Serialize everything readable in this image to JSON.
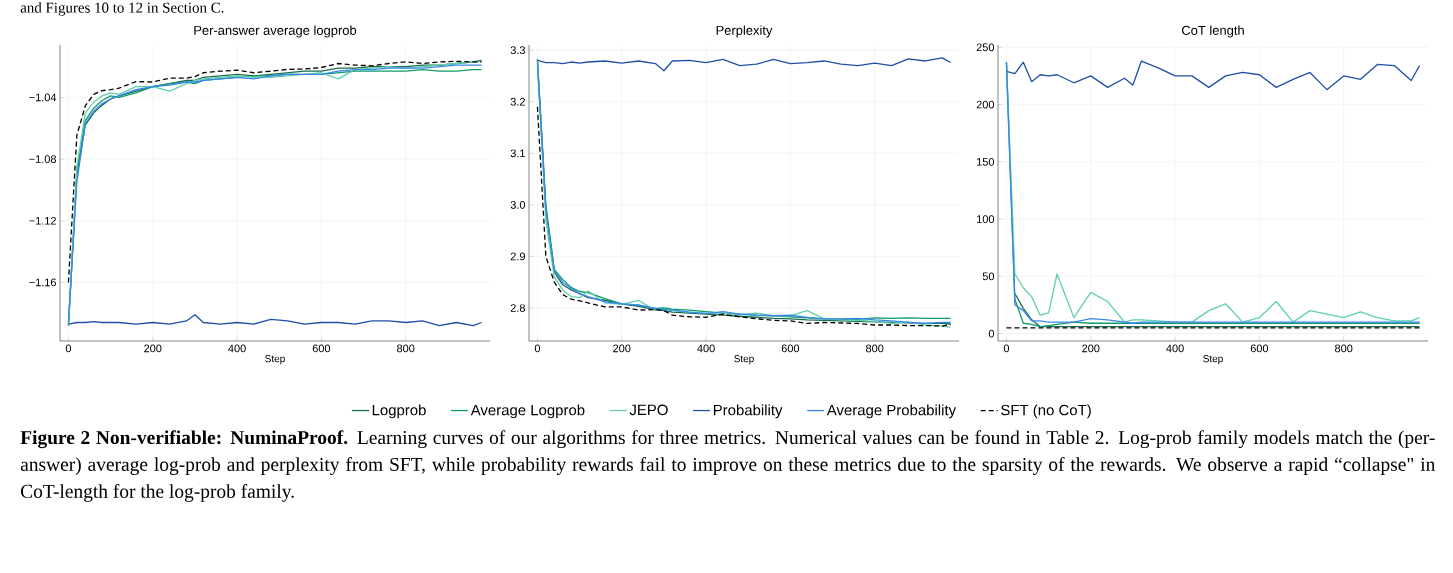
{
  "chart_data": [
    {
      "type": "line",
      "title": "Per-answer average logprob",
      "xlabel": "Step",
      "grid": true,
      "annotations": [
        "and Figures 10 to 12 in Section C.",
        "**Figure 2 Non-verifiable: NuminaProof.** Learning curves of our algorithms for three metrics. Numerical values can be found in Table 2. Log-prob family models match the (per-answer) average log-prob and perplexity from SFT, while probability rewards fail to improve on these metrics due to the sparsity of the rewards. We observe a rapid “collapse\" in CoT-length for the log-prob family."
      ],
      "xlim": [
        -20,
        1000
      ],
      "xticks": [
        0,
        200,
        400,
        600,
        800
      ],
      "ylim": [
        -1.198,
        -1.006
      ],
      "yticks": [
        {
          "value": -1.16,
          "label": "−1.16"
        },
        {
          "value": -1.12,
          "label": "−1.12"
        },
        {
          "value": -1.08,
          "label": "−1.08"
        },
        {
          "value": -1.04,
          "label": "−1.04"
        }
      ],
      "x": [
        0,
        20,
        40,
        60,
        80,
        100,
        120,
        160,
        200,
        240,
        280,
        300,
        320,
        360,
        400,
        440,
        480,
        520,
        560,
        600,
        640,
        680,
        720,
        760,
        800,
        840,
        880,
        920,
        960,
        980
      ],
      "series": [
        {
          "color": "#1a6b4f",
          "values": [
            -1.188,
            -1.09,
            -1.058,
            -1.05,
            -1.045,
            -1.041,
            -1.039,
            -1.036,
            -1.033,
            -1.031,
            -1.029,
            -1.029,
            -1.027,
            -1.026,
            -1.025,
            -1.026,
            -1.025,
            -1.024,
            -1.023,
            -1.023,
            -1.021,
            -1.021,
            -1.02,
            -1.02,
            -1.02,
            -1.019,
            -1.019,
            -1.018,
            -1.017,
            -1.016
          ]
        },
        {
          "color": "#0e9a6a",
          "values": [
            -1.188,
            -1.088,
            -1.055,
            -1.047,
            -1.042,
            -1.039,
            -1.04,
            -1.037,
            -1.033,
            -1.031,
            -1.03,
            -1.031,
            -1.029,
            -1.028,
            -1.027,
            -1.026,
            -1.026,
            -1.025,
            -1.025,
            -1.025,
            -1.024,
            -1.023,
            -1.023,
            -1.023,
            -1.023,
            -1.022,
            -1.023,
            -1.023,
            -1.022,
            -1.022
          ]
        },
        {
          "color": "#5fd0a8",
          "values": [
            -1.188,
            -1.085,
            -1.05,
            -1.043,
            -1.039,
            -1.037,
            -1.038,
            -1.033,
            -1.033,
            -1.036,
            -1.031,
            -1.029,
            -1.028,
            -1.027,
            -1.026,
            -1.027,
            -1.027,
            -1.026,
            -1.025,
            -1.024,
            -1.028,
            -1.022,
            -1.021,
            -1.02,
            -1.021,
            -1.02,
            -1.019,
            -1.018,
            -1.017,
            -1.017
          ]
        },
        {
          "color": "#1f4fa8",
          "values": [
            -1.187,
            -1.186,
            -1.186,
            -1.1855,
            -1.186,
            -1.186,
            -1.186,
            -1.187,
            -1.186,
            -1.187,
            -1.185,
            -1.181,
            -1.186,
            -1.187,
            -1.186,
            -1.187,
            -1.184,
            -1.185,
            -1.187,
            -1.186,
            -1.186,
            -1.187,
            -1.185,
            -1.185,
            -1.186,
            -1.185,
            -1.188,
            -1.186,
            -1.188,
            -1.186
          ]
        },
        {
          "color": "#3a86f0",
          "values": [
            -1.186,
            -1.095,
            -1.057,
            -1.049,
            -1.044,
            -1.041,
            -1.039,
            -1.035,
            -1.033,
            -1.032,
            -1.03,
            -1.03,
            -1.029,
            -1.028,
            -1.027,
            -1.028,
            -1.026,
            -1.025,
            -1.025,
            -1.025,
            -1.023,
            -1.022,
            -1.022,
            -1.021,
            -1.021,
            -1.021,
            -1.02,
            -1.019,
            -1.019,
            -1.019
          ]
        },
        {
          "color": "#000000",
          "line_style": "dashed",
          "values": [
            -1.16,
            -1.0645,
            -1.0455,
            -1.038,
            -1.0356,
            -1.035,
            -1.034,
            -1.0297,
            -1.03,
            -1.0275,
            -1.0275,
            -1.0265,
            -1.024,
            -1.023,
            -1.0223,
            -1.024,
            -1.023,
            -1.0218,
            -1.0216,
            -1.0206,
            -1.018,
            -1.019,
            -1.0195,
            -1.018,
            -1.017,
            -1.018,
            -1.017,
            -1.0166,
            -1.017,
            -1.017
          ]
        }
      ]
    },
    {
      "type": "line",
      "title": "Perplexity",
      "xlabel": "Step",
      "grid": true,
      "legend": "bottom",
      "xlim": [
        -20,
        1000
      ],
      "xticks": [
        0,
        200,
        400,
        600,
        800
      ],
      "ylim": [
        2.736,
        3.31
      ],
      "yticks": [
        2.8,
        2.9,
        {
          "value": 3.0,
          "label": "3.0"
        },
        3.1,
        3.2,
        3.3
      ],
      "x": [
        0,
        20,
        40,
        60,
        80,
        100,
        120,
        160,
        200,
        240,
        280,
        300,
        320,
        360,
        400,
        440,
        480,
        520,
        560,
        600,
        640,
        680,
        720,
        760,
        800,
        840,
        880,
        920,
        960,
        980
      ],
      "series": [
        {
          "name": "Logprob",
          "color": "#1a6b4f",
          "values": [
            3.28,
            2.99,
            2.87,
            2.845,
            2.835,
            2.828,
            2.82,
            2.815,
            2.808,
            2.803,
            2.797,
            2.795,
            2.792,
            2.79,
            2.788,
            2.786,
            2.784,
            2.782,
            2.78,
            2.779,
            2.777,
            2.776,
            2.775,
            2.774,
            2.773,
            2.772,
            2.771,
            2.77,
            2.77,
            2.769
          ]
        },
        {
          "name": "Average Logprob",
          "color": "#0e9a6a",
          "values": [
            3.283,
            3.0,
            2.875,
            2.855,
            2.84,
            2.832,
            2.83,
            2.818,
            2.808,
            2.805,
            2.799,
            2.8,
            2.798,
            2.796,
            2.793,
            2.79,
            2.788,
            2.786,
            2.785,
            2.783,
            2.781,
            2.779,
            2.778,
            2.778,
            2.781,
            2.78,
            2.781,
            2.78,
            2.78,
            2.78
          ]
        },
        {
          "name": "JEPO",
          "color": "#5fd0a8",
          "values": [
            3.28,
            2.97,
            2.86,
            2.835,
            2.822,
            2.82,
            2.833,
            2.81,
            2.807,
            2.815,
            2.795,
            2.798,
            2.795,
            2.792,
            2.79,
            2.79,
            2.787,
            2.79,
            2.785,
            2.785,
            2.795,
            2.779,
            2.777,
            2.776,
            2.774,
            2.77,
            2.773,
            2.767,
            2.765,
            2.763
          ]
        },
        {
          "name": "Probability",
          "color": "#1f4fa8",
          "values": [
            3.28,
            3.276,
            3.276,
            3.274,
            3.277,
            3.275,
            3.277,
            3.279,
            3.275,
            3.279,
            3.274,
            3.26,
            3.279,
            3.28,
            3.276,
            3.282,
            3.27,
            3.273,
            3.282,
            3.274,
            3.276,
            3.279,
            3.273,
            3.27,
            3.275,
            3.27,
            3.283,
            3.279,
            3.285,
            3.276
          ]
        },
        {
          "name": "Average Probability",
          "color": "#3a86f0",
          "values": [
            3.275,
            2.99,
            2.872,
            2.85,
            2.838,
            2.828,
            2.822,
            2.812,
            2.808,
            2.806,
            2.799,
            2.797,
            2.796,
            2.792,
            2.789,
            2.793,
            2.788,
            2.786,
            2.785,
            2.786,
            2.782,
            2.779,
            2.779,
            2.78,
            2.777,
            2.775,
            2.772,
            2.77,
            2.772,
            2.772
          ]
        },
        {
          "name": "SFT (no CoT)",
          "color": "#000000",
          "line_style": "dashed",
          "values": [
            3.19,
            2.9,
            2.85,
            2.826,
            2.817,
            2.814,
            2.81,
            2.802,
            2.802,
            2.796,
            2.797,
            2.795,
            2.786,
            2.783,
            2.782,
            2.788,
            2.783,
            2.779,
            2.776,
            2.775,
            2.77,
            2.772,
            2.771,
            2.77,
            2.767,
            2.767,
            2.766,
            2.766,
            2.765,
            2.768
          ]
        }
      ]
    },
    {
      "type": "line",
      "title": "CoT length",
      "xlabel": "Step",
      "grid": true,
      "xlim": [
        -20,
        1000
      ],
      "xticks": [
        0,
        200,
        400,
        600,
        800
      ],
      "ylim": [
        -6.5,
        252
      ],
      "yticks": [
        0,
        50,
        100,
        150,
        200,
        250
      ],
      "x": [
        0,
        20,
        40,
        60,
        80,
        100,
        120,
        160,
        200,
        240,
        280,
        300,
        320,
        360,
        400,
        440,
        480,
        520,
        560,
        600,
        640,
        680,
        720,
        760,
        800,
        840,
        880,
        920,
        960,
        980
      ],
      "series": [
        {
          "color": "#1a6b4f",
          "values": [
            null,
            35,
            22,
            12,
            6,
            6,
            6,
            6,
            6,
            6,
            6,
            6,
            6,
            6,
            6,
            6,
            6,
            6,
            6,
            6,
            6,
            6,
            6,
            6,
            6,
            6,
            6,
            6,
            6,
            6
          ]
        },
        {
          "color": "#0e9a6a",
          "values": [
            237,
            30,
            9,
            8,
            6,
            7,
            8,
            10,
            9,
            9,
            9,
            9,
            9,
            9,
            9,
            9,
            9,
            9,
            9,
            9,
            9,
            9,
            9,
            9,
            9,
            9,
            9,
            9,
            9,
            9
          ]
        },
        {
          "color": "#5fd0a8",
          "values": [
            237,
            52,
            40,
            32,
            16,
            18,
            52,
            14,
            36,
            28,
            10,
            12,
            12,
            11,
            10,
            10,
            20,
            26,
            10,
            14,
            28,
            10,
            20,
            17,
            14,
            19,
            14,
            11,
            11,
            14
          ]
        },
        {
          "color": "#1f4fa8",
          "values": [
            229,
            227,
            237,
            220,
            226,
            225,
            226,
            219,
            225,
            215,
            223,
            217,
            238,
            232,
            225,
            225,
            215,
            225,
            228,
            226,
            215,
            222,
            228,
            213,
            225,
            222,
            235,
            234,
            221,
            234
          ]
        },
        {
          "color": "#3a86f0",
          "values": [
            237,
            25,
            20,
            11,
            11,
            10,
            10,
            10,
            13,
            12,
            10,
            9,
            10,
            10,
            10,
            10,
            10,
            10,
            10,
            10,
            10,
            10,
            10,
            10,
            10,
            10,
            10,
            10,
            10,
            10
          ]
        },
        {
          "color": "#000000",
          "line_style": "dashed",
          "values": [
            5,
            5,
            5,
            5,
            5,
            5,
            5,
            5,
            5,
            5,
            5,
            5,
            5,
            5,
            5,
            5,
            5,
            5,
            5,
            5,
            5,
            5,
            5,
            5,
            5,
            5,
            5,
            5,
            5,
            5
          ]
        }
      ]
    }
  ]
}
